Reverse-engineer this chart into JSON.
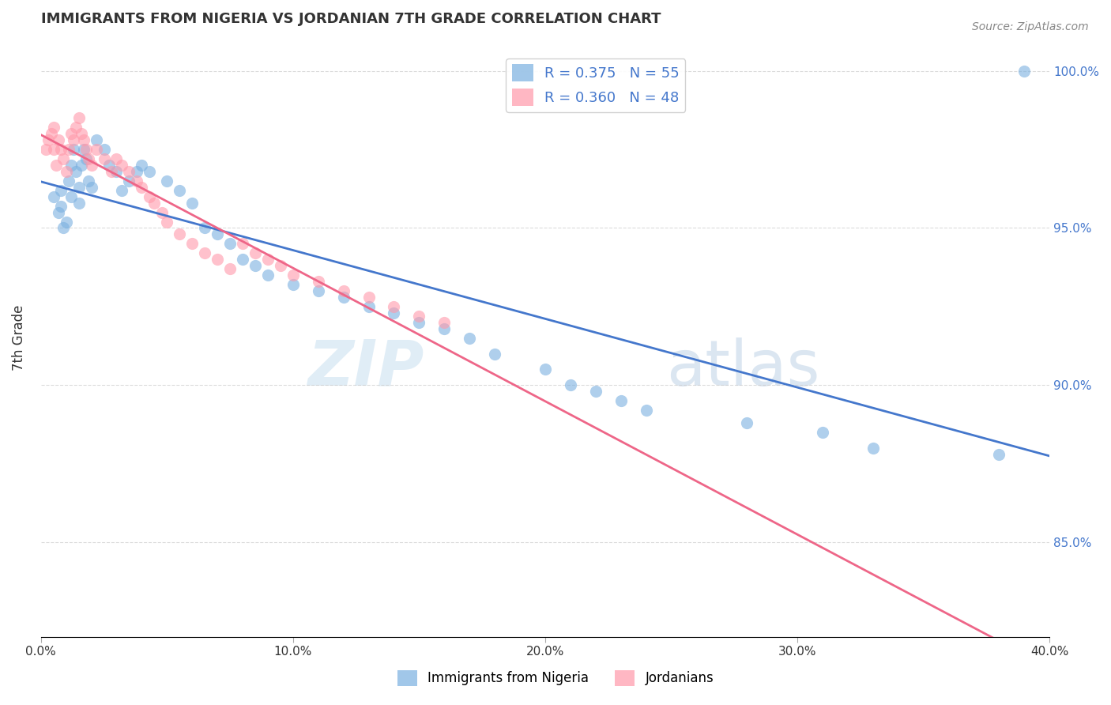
{
  "title": "IMMIGRANTS FROM NIGERIA VS JORDANIAN 7TH GRADE CORRELATION CHART",
  "source": "Source: ZipAtlas.com",
  "ylabel": "7th Grade",
  "xlim": [
    0.0,
    0.4
  ],
  "ylim": [
    0.82,
    1.01
  ],
  "legend1_label": "R = 0.375   N = 55",
  "legend2_label": "R = 0.360   N = 48",
  "nigeria_color": "#7ab0e0",
  "jordan_color": "#ff99aa",
  "trendline_blue": "#4477cc",
  "trendline_pink": "#ee6688",
  "nigeria_x": [
    0.005,
    0.007,
    0.008,
    0.008,
    0.009,
    0.01,
    0.011,
    0.012,
    0.012,
    0.013,
    0.014,
    0.015,
    0.015,
    0.016,
    0.017,
    0.018,
    0.019,
    0.02,
    0.022,
    0.025,
    0.027,
    0.03,
    0.032,
    0.035,
    0.038,
    0.04,
    0.043,
    0.05,
    0.055,
    0.06,
    0.065,
    0.07,
    0.075,
    0.08,
    0.085,
    0.09,
    0.1,
    0.11,
    0.12,
    0.13,
    0.14,
    0.15,
    0.16,
    0.17,
    0.18,
    0.2,
    0.21,
    0.22,
    0.23,
    0.24,
    0.28,
    0.31,
    0.33,
    0.38,
    0.39
  ],
  "nigeria_y": [
    0.96,
    0.955,
    0.957,
    0.962,
    0.95,
    0.952,
    0.965,
    0.96,
    0.97,
    0.975,
    0.968,
    0.963,
    0.958,
    0.97,
    0.975,
    0.972,
    0.965,
    0.963,
    0.978,
    0.975,
    0.97,
    0.968,
    0.962,
    0.965,
    0.968,
    0.97,
    0.968,
    0.965,
    0.962,
    0.958,
    0.95,
    0.948,
    0.945,
    0.94,
    0.938,
    0.935,
    0.932,
    0.93,
    0.928,
    0.925,
    0.923,
    0.92,
    0.918,
    0.915,
    0.91,
    0.905,
    0.9,
    0.898,
    0.895,
    0.892,
    0.888,
    0.885,
    0.88,
    0.878,
    1.0
  ],
  "jordan_x": [
    0.002,
    0.003,
    0.004,
    0.005,
    0.005,
    0.006,
    0.007,
    0.008,
    0.009,
    0.01,
    0.011,
    0.012,
    0.013,
    0.014,
    0.015,
    0.016,
    0.017,
    0.018,
    0.019,
    0.02,
    0.022,
    0.025,
    0.028,
    0.03,
    0.032,
    0.035,
    0.038,
    0.04,
    0.043,
    0.045,
    0.048,
    0.05,
    0.055,
    0.06,
    0.065,
    0.07,
    0.075,
    0.08,
    0.085,
    0.09,
    0.095,
    0.1,
    0.11,
    0.12,
    0.13,
    0.14,
    0.15,
    0.16
  ],
  "jordan_y": [
    0.975,
    0.978,
    0.98,
    0.982,
    0.975,
    0.97,
    0.978,
    0.975,
    0.972,
    0.968,
    0.975,
    0.98,
    0.978,
    0.982,
    0.985,
    0.98,
    0.978,
    0.975,
    0.972,
    0.97,
    0.975,
    0.972,
    0.968,
    0.972,
    0.97,
    0.968,
    0.965,
    0.963,
    0.96,
    0.958,
    0.955,
    0.952,
    0.948,
    0.945,
    0.942,
    0.94,
    0.937,
    0.945,
    0.942,
    0.94,
    0.938,
    0.935,
    0.933,
    0.93,
    0.928,
    0.925,
    0.922,
    0.92
  ],
  "watermark_zip": "ZIP",
  "watermark_atlas": "atlas",
  "background_color": "#ffffff",
  "grid_color": "#cccccc",
  "xticks": [
    0.0,
    0.1,
    0.2,
    0.3,
    0.4
  ],
  "xticklabels": [
    "0.0%",
    "10.0%",
    "20.0%",
    "30.0%",
    "40.0%"
  ],
  "yticks": [
    0.85,
    0.9,
    0.95,
    1.0
  ],
  "yticklabels_right": [
    "85.0%",
    "90.0%",
    "95.0%",
    "100.0%"
  ],
  "legend_bottom_labels": [
    "Immigrants from Nigeria",
    "Jordanians"
  ]
}
